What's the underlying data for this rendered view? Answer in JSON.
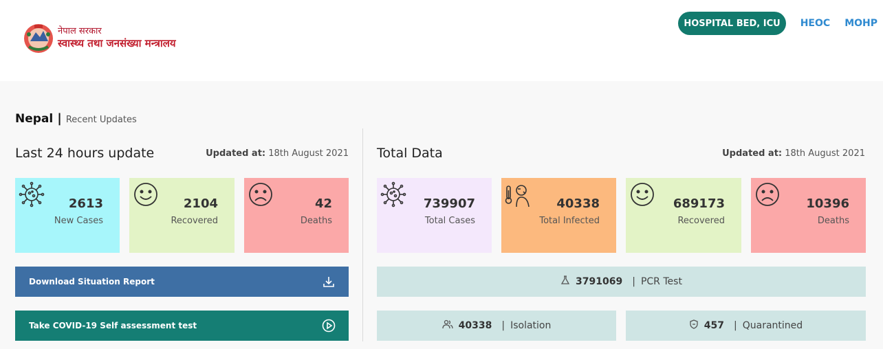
{
  "header": {
    "logo": {
      "line1": "नेपाल सरकार",
      "line2": "स्वास्थ्य तथा जनसंख्या मन्त्रालय"
    },
    "nav": {
      "pill": "HOSPITAL BED, ICU",
      "link1": "HEOC",
      "link2": "MOHP"
    }
  },
  "breadcrumb": {
    "country": "Nepal",
    "separator": "|",
    "subtitle": "Recent Updates"
  },
  "last24": {
    "title": "Last 24 hours update",
    "updated_label": "Updated at:",
    "updated_date": "18th August 2021",
    "cards": [
      {
        "value": "2613",
        "label": "New Cases",
        "color": "#a7f6fb",
        "icon": "virus-icon"
      },
      {
        "value": "2104",
        "label": "Recovered",
        "color": "#e3f3c6",
        "icon": "smile-face-icon"
      },
      {
        "value": "42",
        "label": "Deaths",
        "color": "#fba8a8",
        "icon": "sad-face-icon"
      }
    ],
    "buttons": [
      {
        "label": "Download Situation Report",
        "color": "#3e6fa4",
        "icon": "download-icon"
      },
      {
        "label": "Take COVID-19 Self assessment test",
        "color": "#157e74",
        "icon": "play-circle-icon"
      }
    ]
  },
  "total": {
    "title": "Total Data",
    "updated_label": "Updated at:",
    "updated_date": "18th August 2021",
    "cards": [
      {
        "value": "739907",
        "label": "Total Cases",
        "color": "#f4e8fc",
        "icon": "virus-icon"
      },
      {
        "value": "40338",
        "label": "Total Infected",
        "color": "#fcb97e",
        "icon": "sick-person-thermometer-icon"
      },
      {
        "value": "689173",
        "label": "Recovered",
        "color": "#e3f3c6",
        "icon": "smile-face-icon"
      },
      {
        "value": "10396",
        "label": "Deaths",
        "color": "#fba8a8",
        "icon": "sad-face-icon"
      }
    ],
    "stats": {
      "pcr": {
        "value": "3791069",
        "sep": "|",
        "label": "PCR Test",
        "icon": "flask-icon"
      },
      "isolation": {
        "value": "40338",
        "sep": "|",
        "label": "Isolation",
        "icon": "people-icon"
      },
      "quarantined": {
        "value": "457",
        "sep": "|",
        "label": "Quarantined",
        "icon": "shield-icon"
      }
    }
  }
}
